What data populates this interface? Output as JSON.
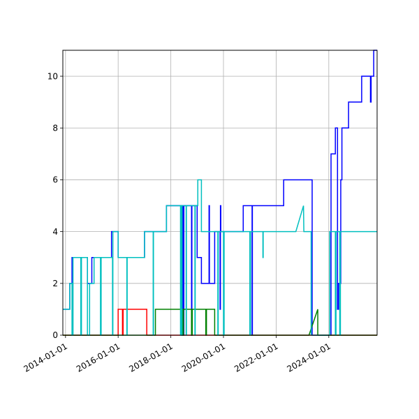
{
  "chart_data": {
    "type": "line",
    "title": "",
    "xlabel": "",
    "ylabel": "",
    "xlim": [
      "2013-11-25",
      "2025-11-01"
    ],
    "ylim": [
      0,
      11
    ],
    "grid": true,
    "x_ticks": [
      "2014-01-01",
      "2016-01-01",
      "2018-01-01",
      "2020-01-01",
      "2022-01-01",
      "2024-01-01"
    ],
    "y_ticks": [
      0,
      2,
      4,
      6,
      8,
      10
    ],
    "series": [
      {
        "color": "#0000ff",
        "step": true,
        "points": [
          [
            "2013-11-25",
            1
          ],
          [
            "2014-03-01",
            1
          ],
          [
            "2014-03-01",
            2
          ],
          [
            "2014-04-01",
            2
          ],
          [
            "2014-04-01",
            3
          ],
          [
            "2014-07-15",
            3
          ],
          [
            "2014-07-15",
            3
          ],
          [
            "2014-08-01",
            3
          ],
          [
            "2014-09-01",
            3
          ],
          [
            "2014-11-01",
            3
          ],
          [
            "2014-11-01",
            2
          ],
          [
            "2015-01-01",
            2
          ],
          [
            "2015-01-01",
            3
          ],
          [
            "2015-10-01",
            3
          ],
          [
            "2015-10-01",
            4
          ],
          [
            "2016-01-01",
            4
          ],
          [
            "2016-01-01",
            3
          ],
          [
            "2017-01-01",
            3
          ],
          [
            "2017-01-01",
            4
          ],
          [
            "2017-11-01",
            4
          ],
          [
            "2017-11-01",
            5
          ],
          [
            "2018-06-01",
            5
          ],
          [
            "2018-06-01",
            4
          ],
          [
            "2018-06-05",
            4
          ],
          [
            "2018-06-05",
            0
          ],
          [
            "2018-06-10",
            0
          ],
          [
            "2018-06-10",
            5
          ],
          [
            "2018-06-15",
            5
          ],
          [
            "2018-06-15",
            0
          ],
          [
            "2018-06-20",
            0
          ],
          [
            "2018-06-20",
            5
          ],
          [
            "2018-06-25",
            5
          ],
          [
            "2018-06-25",
            0
          ],
          [
            "2018-07-01",
            0
          ],
          [
            "2018-07-01",
            5
          ],
          [
            "2018-10-15",
            5
          ],
          [
            "2018-10-15",
            0
          ],
          [
            "2018-10-20",
            0
          ],
          [
            "2018-10-20",
            5
          ],
          [
            "2019-01-01",
            5
          ],
          [
            "2019-01-01",
            3
          ],
          [
            "2019-03-01",
            3
          ],
          [
            "2019-03-01",
            2
          ],
          [
            "2019-06-15",
            2
          ],
          [
            "2019-06-15",
            5
          ],
          [
            "2019-06-20",
            5
          ],
          [
            "2019-06-20",
            2
          ],
          [
            "2019-09-01",
            2
          ],
          [
            "2019-09-01",
            4
          ],
          [
            "2019-11-15",
            4
          ],
          [
            "2019-11-15",
            1
          ],
          [
            "2019-11-20",
            1
          ],
          [
            "2019-11-20",
            5
          ],
          [
            "2019-11-25",
            5
          ],
          [
            "2019-11-25",
            4
          ],
          [
            "2020-10-01",
            4
          ],
          [
            "2020-10-01",
            5
          ],
          [
            "2021-02-01",
            5
          ],
          [
            "2021-02-01",
            0
          ],
          [
            "2021-02-05",
            0
          ],
          [
            "2021-02-05",
            5
          ],
          [
            "2022-04-15",
            5
          ],
          [
            "2022-04-15",
            6
          ],
          [
            "2023-05-15",
            6
          ],
          [
            "2023-05-15",
            0
          ],
          [
            "2024-02-01",
            0
          ],
          [
            "2024-02-01",
            7
          ],
          [
            "2024-04-01",
            7
          ],
          [
            "2024-04-01",
            8
          ],
          [
            "2024-05-01",
            8
          ],
          [
            "2024-05-01",
            1
          ],
          [
            "2024-05-15",
            1
          ],
          [
            "2024-05-15",
            2
          ],
          [
            "2024-06-15",
            2
          ],
          [
            "2024-06-15",
            6
          ],
          [
            "2024-07-01",
            6
          ],
          [
            "2024-07-01",
            8
          ],
          [
            "2024-10-01",
            8
          ],
          [
            "2024-10-01",
            9
          ],
          [
            "2025-04-01",
            9
          ],
          [
            "2025-04-01",
            10
          ],
          [
            "2025-08-01",
            10
          ],
          [
            "2025-08-01",
            9
          ],
          [
            "2025-08-10",
            9
          ],
          [
            "2025-08-10",
            10
          ],
          [
            "2025-09-15",
            10
          ],
          [
            "2025-09-15",
            11
          ],
          [
            "2025-11-01",
            11
          ]
        ]
      },
      {
        "color": "#ff0000",
        "step": true,
        "points": [
          [
            "2013-11-25",
            0
          ],
          [
            "2016-01-01",
            0
          ],
          [
            "2016-01-01",
            1
          ],
          [
            "2016-03-01",
            1
          ],
          [
            "2016-03-01",
            0
          ],
          [
            "2016-03-10",
            0
          ],
          [
            "2016-03-10",
            1
          ],
          [
            "2017-02-01",
            1
          ],
          [
            "2017-02-01",
            0
          ],
          [
            "2025-11-01",
            0
          ]
        ]
      },
      {
        "color": "#008000",
        "step": true,
        "points": [
          [
            "2013-11-25",
            0
          ],
          [
            "2017-06-01",
            0
          ],
          [
            "2017-06-01",
            1
          ],
          [
            "2018-06-01",
            1
          ],
          [
            "2018-06-01",
            0
          ],
          [
            "2018-06-10",
            0
          ],
          [
            "2018-06-10",
            1
          ],
          [
            "2018-06-15",
            1
          ],
          [
            "2018-06-15",
            0
          ],
          [
            "2018-06-25",
            0
          ],
          [
            "2018-06-25",
            1
          ],
          [
            "2018-10-15",
            1
          ],
          [
            "2018-10-15",
            0
          ],
          [
            "2018-10-25",
            0
          ],
          [
            "2018-10-25",
            1
          ],
          [
            "2019-05-01",
            1
          ],
          [
            "2019-05-01",
            0
          ],
          [
            "2019-05-10",
            0
          ],
          [
            "2019-05-10",
            1
          ],
          [
            "2019-09-01",
            1
          ],
          [
            "2019-09-01",
            0
          ],
          [
            "2023-04-01",
            0
          ],
          [
            "2023-08-01",
            1
          ],
          [
            "2023-08-01",
            0
          ],
          [
            "2025-11-01",
            0
          ]
        ]
      },
      {
        "color": "#00bfbf",
        "step": true,
        "points": [
          [
            "2013-11-25",
            1
          ],
          [
            "2014-03-01",
            1
          ],
          [
            "2014-03-01",
            2
          ],
          [
            "2014-04-01",
            2
          ],
          [
            "2014-04-01",
            0
          ],
          [
            "2014-04-15",
            0
          ],
          [
            "2014-04-15",
            3
          ],
          [
            "2014-08-01",
            3
          ],
          [
            "2014-08-01",
            0
          ],
          [
            "2014-08-10",
            0
          ],
          [
            "2014-08-10",
            3
          ],
          [
            "2014-11-01",
            3
          ],
          [
            "2014-11-01",
            0
          ],
          [
            "2014-12-01",
            0
          ],
          [
            "2014-12-01",
            2
          ],
          [
            "2015-02-01",
            2
          ],
          [
            "2015-02-01",
            3
          ],
          [
            "2015-05-01",
            3
          ],
          [
            "2015-05-01",
            0
          ],
          [
            "2015-05-10",
            0
          ],
          [
            "2015-05-10",
            3
          ],
          [
            "2015-10-15",
            3
          ],
          [
            "2015-10-15",
            0
          ],
          [
            "2015-10-20",
            0
          ],
          [
            "2015-10-20",
            4
          ],
          [
            "2016-01-01",
            4
          ],
          [
            "2016-01-01",
            3
          ],
          [
            "2016-05-01",
            3
          ],
          [
            "2016-05-01",
            0
          ],
          [
            "2016-05-05",
            0
          ],
          [
            "2016-05-05",
            3
          ],
          [
            "2017-01-01",
            3
          ],
          [
            "2017-01-01",
            4
          ],
          [
            "2017-05-01",
            4
          ],
          [
            "2017-05-01",
            0
          ],
          [
            "2017-05-05",
            0
          ],
          [
            "2017-05-05",
            4
          ],
          [
            "2017-11-01",
            4
          ],
          [
            "2017-11-01",
            5
          ],
          [
            "2018-05-15",
            5
          ],
          [
            "2018-05-15",
            0
          ],
          [
            "2018-05-20",
            0
          ],
          [
            "2018-05-20",
            5
          ],
          [
            "2018-06-01",
            5
          ],
          [
            "2018-06-01",
            0
          ],
          [
            "2018-06-05",
            0
          ],
          [
            "2018-06-05",
            5
          ],
          [
            "2018-08-01",
            5
          ],
          [
            "2018-08-01",
            0
          ],
          [
            "2018-08-05",
            0
          ],
          [
            "2018-08-05",
            5
          ],
          [
            "2018-12-01",
            5
          ],
          [
            "2018-12-01",
            0
          ],
          [
            "2018-12-05",
            0
          ],
          [
            "2018-12-05",
            5
          ],
          [
            "2019-01-10",
            5
          ],
          [
            "2019-01-10",
            6
          ],
          [
            "2019-03-01",
            6
          ],
          [
            "2019-03-01",
            4
          ],
          [
            "2019-10-15",
            4
          ],
          [
            "2019-10-15",
            0
          ],
          [
            "2019-10-20",
            0
          ],
          [
            "2019-10-20",
            4
          ],
          [
            "2020-01-01",
            4
          ],
          [
            "2020-01-01",
            0
          ],
          [
            "2020-01-10",
            0
          ],
          [
            "2020-01-10",
            4
          ],
          [
            "2021-01-01",
            4
          ],
          [
            "2021-01-01",
            0
          ],
          [
            "2021-01-10",
            0
          ],
          [
            "2021-01-10",
            4
          ],
          [
            "2021-07-01",
            4
          ],
          [
            "2021-07-01",
            3
          ],
          [
            "2021-07-05",
            3
          ],
          [
            "2021-07-05",
            4
          ],
          [
            "2022-10-01",
            4
          ],
          [
            "2022-10-01",
            4
          ],
          [
            "2023-01-15",
            5
          ],
          [
            "2023-01-20",
            4
          ],
          [
            "2023-05-01",
            4
          ],
          [
            "2023-05-01",
            0
          ],
          [
            "2024-01-15",
            0
          ],
          [
            "2024-01-15",
            4
          ],
          [
            "2024-04-01",
            4
          ],
          [
            "2024-04-01",
            0
          ],
          [
            "2024-04-10",
            0
          ],
          [
            "2024-04-10",
            4
          ],
          [
            "2024-06-01",
            4
          ],
          [
            "2024-06-01",
            0
          ],
          [
            "2024-06-10",
            0
          ],
          [
            "2024-06-10",
            4
          ],
          [
            "2025-11-01",
            4
          ]
        ]
      }
    ]
  }
}
